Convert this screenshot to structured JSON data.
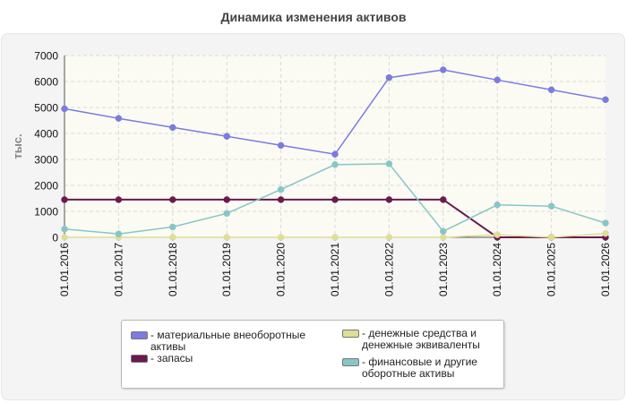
{
  "chart_data": {
    "type": "line",
    "title": "Динамика изменения активов",
    "ylabel": "тыс.",
    "xlabel": "",
    "ylim": [
      0,
      7000
    ],
    "yticks": [
      0,
      1000,
      2000,
      3000,
      4000,
      5000,
      6000,
      7000
    ],
    "grid": true,
    "legend_position": "bottom",
    "categories": [
      "01.01.2016",
      "01.01.2017",
      "01.01.2018",
      "01.01.2019",
      "01.01.2020",
      "01.01.2021",
      "01.01.2022",
      "01.01.2023",
      "01.01.2024",
      "01.01.2025",
      "01.01.2026"
    ],
    "series": [
      {
        "name": "материальные внеоборотные активы",
        "color": "#7b7be0",
        "values": [
          4950,
          4580,
          4230,
          3890,
          3540,
          3200,
          6150,
          6450,
          6060,
          5680,
          5300
        ]
      },
      {
        "name": "запасы",
        "color": "#6b1a4e",
        "values": [
          1450,
          1450,
          1450,
          1450,
          1450,
          1450,
          1450,
          1450,
          0,
          0,
          0
        ]
      },
      {
        "name": "денежные средства и денежные эквиваленты",
        "color": "#dede95",
        "values": [
          0,
          0,
          0,
          0,
          0,
          0,
          0,
          0,
          100,
          0,
          150
        ]
      },
      {
        "name": "финансовые и другие оборотные активы",
        "color": "#86c6c6",
        "values": [
          320,
          130,
          400,
          920,
          1840,
          2800,
          2830,
          230,
          1250,
          1200,
          550
        ]
      }
    ]
  }
}
